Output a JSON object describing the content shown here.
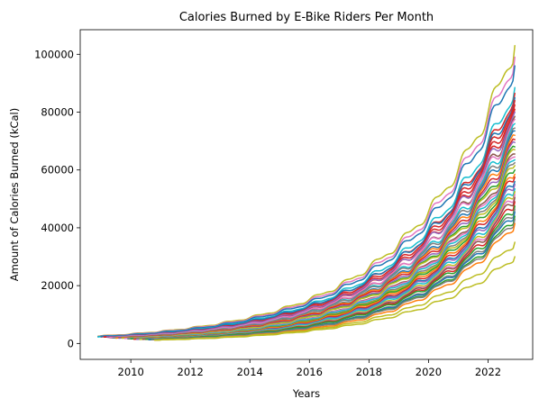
{
  "chart_data": {
    "type": "line",
    "title": "Calories Burned by E-Bike Riders Per Month",
    "xlabel": "Years",
    "ylabel": "Amount of Calories Burned (kCal)",
    "xlim": [
      2008.3,
      2023.5
    ],
    "ylim": [
      -5500,
      108500
    ],
    "x_ticks": [
      2010,
      2012,
      2014,
      2016,
      2018,
      2020,
      2022
    ],
    "x_tick_labels": [
      "2010",
      "2012",
      "2014",
      "2016",
      "2018",
      "2020",
      "2022"
    ],
    "y_ticks": [
      0,
      20000,
      40000,
      60000,
      80000,
      100000
    ],
    "y_tick_labels": [
      "0",
      "20000",
      "40000",
      "60000",
      "80000",
      "100000"
    ],
    "grid": false,
    "legend": "none",
    "x_end": 2022.9,
    "palette": [
      "#1f77b4",
      "#ff7f0e",
      "#2ca02c",
      "#d62728",
      "#9467bd",
      "#8c564b",
      "#e377c2",
      "#7f7f7f",
      "#bcbd22",
      "#17becf"
    ],
    "series": [
      {
        "color": "#bcbd22",
        "x_start": 2008.9,
        "start": 2600,
        "end": 103000
      },
      {
        "color": "#e377c2",
        "x_start": 2008.9,
        "start": 2500,
        "end": 99000
      },
      {
        "color": "#1f77b4",
        "x_start": 2008.9,
        "start": 2400,
        "end": 96000
      },
      {
        "color": "#17becf",
        "x_start": 2008.9,
        "start": 2300,
        "end": 88500
      },
      {
        "color": "#d62728",
        "x_start": 2009.0,
        "start": 2200,
        "end": 86500
      },
      {
        "color": "#1f77b4",
        "x_start": 2009.0,
        "start": 2300,
        "end": 85000
      },
      {
        "color": "#d62728",
        "x_start": 2009.1,
        "start": 2200,
        "end": 84000
      },
      {
        "color": "#d62728",
        "x_start": 2009.1,
        "start": 2100,
        "end": 82500
      },
      {
        "color": "#d62728",
        "x_start": 2009.2,
        "start": 2100,
        "end": 81000
      },
      {
        "color": "#9467bd",
        "x_start": 2009.2,
        "start": 2200,
        "end": 80000
      },
      {
        "color": "#8c564b",
        "x_start": 2009.3,
        "start": 2000,
        "end": 78500
      },
      {
        "color": "#e377c2",
        "x_start": 2009.3,
        "start": 2100,
        "end": 77500
      },
      {
        "color": "#17becf",
        "x_start": 2009.4,
        "start": 2000,
        "end": 76000
      },
      {
        "color": "#7f7f7f",
        "x_start": 2009.4,
        "start": 2000,
        "end": 74500
      },
      {
        "color": "#1f77b4",
        "x_start": 2009.5,
        "start": 1900,
        "end": 73500
      },
      {
        "color": "#ff7f0e",
        "x_start": 2009.5,
        "start": 1900,
        "end": 72000
      },
      {
        "color": "#d62728",
        "x_start": 2009.6,
        "start": 1900,
        "end": 70500
      },
      {
        "color": "#9467bd",
        "x_start": 2009.6,
        "start": 1800,
        "end": 69500
      },
      {
        "color": "#2ca02c",
        "x_start": 2009.7,
        "start": 1800,
        "end": 68000
      },
      {
        "color": "#bcbd22",
        "x_start": 2009.7,
        "start": 1800,
        "end": 67000
      },
      {
        "color": "#8c564b",
        "x_start": 2009.8,
        "start": 1700,
        "end": 65500
      },
      {
        "color": "#e377c2",
        "x_start": 2009.8,
        "start": 1700,
        "end": 64500
      },
      {
        "color": "#17becf",
        "x_start": 2009.9,
        "start": 1700,
        "end": 63500
      },
      {
        "color": "#7f7f7f",
        "x_start": 2009.9,
        "start": 1600,
        "end": 62500
      },
      {
        "color": "#bcbd22",
        "x_start": 2010.0,
        "start": 1600,
        "end": 61500
      },
      {
        "color": "#2ca02c",
        "x_start": 2010.0,
        "start": 1600,
        "end": 60000
      },
      {
        "color": "#ff7f0e",
        "x_start": 2010.1,
        "start": 1600,
        "end": 58500
      },
      {
        "color": "#d62728",
        "x_start": 2010.1,
        "start": 1500,
        "end": 57500
      },
      {
        "color": "#1f77b4",
        "x_start": 2010.2,
        "start": 1500,
        "end": 56000
      },
      {
        "color": "#9467bd",
        "x_start": 2010.2,
        "start": 1500,
        "end": 55000
      },
      {
        "color": "#17becf",
        "x_start": 2010.3,
        "start": 1500,
        "end": 53500
      },
      {
        "color": "#bcbd22",
        "x_start": 2010.3,
        "start": 1400,
        "end": 52500
      },
      {
        "color": "#e377c2",
        "x_start": 2010.4,
        "start": 1400,
        "end": 51500
      },
      {
        "color": "#8c564b",
        "x_start": 2010.4,
        "start": 1400,
        "end": 50500
      },
      {
        "color": "#d62728",
        "x_start": 2010.5,
        "start": 1400,
        "end": 49000
      },
      {
        "color": "#2ca02c",
        "x_start": 2010.5,
        "start": 1400,
        "end": 47500
      },
      {
        "color": "#7f7f7f",
        "x_start": 2010.6,
        "start": 1300,
        "end": 46500
      },
      {
        "color": "#1f77b4",
        "x_start": 2010.6,
        "start": 1300,
        "end": 45500
      },
      {
        "color": "#2ca02c",
        "x_start": 2010.7,
        "start": 1300,
        "end": 44000
      },
      {
        "color": "#7f7f7f",
        "x_start": 2010.7,
        "start": 1300,
        "end": 43000
      },
      {
        "color": "#ff7f0e",
        "x_start": 2010.8,
        "start": 1200,
        "end": 41500
      },
      {
        "color": "#bcbd22",
        "x_start": 2010.8,
        "start": 1200,
        "end": 35000
      },
      {
        "color": "#bcbd22",
        "x_start": 2010.9,
        "start": 1200,
        "end": 30000
      }
    ]
  }
}
